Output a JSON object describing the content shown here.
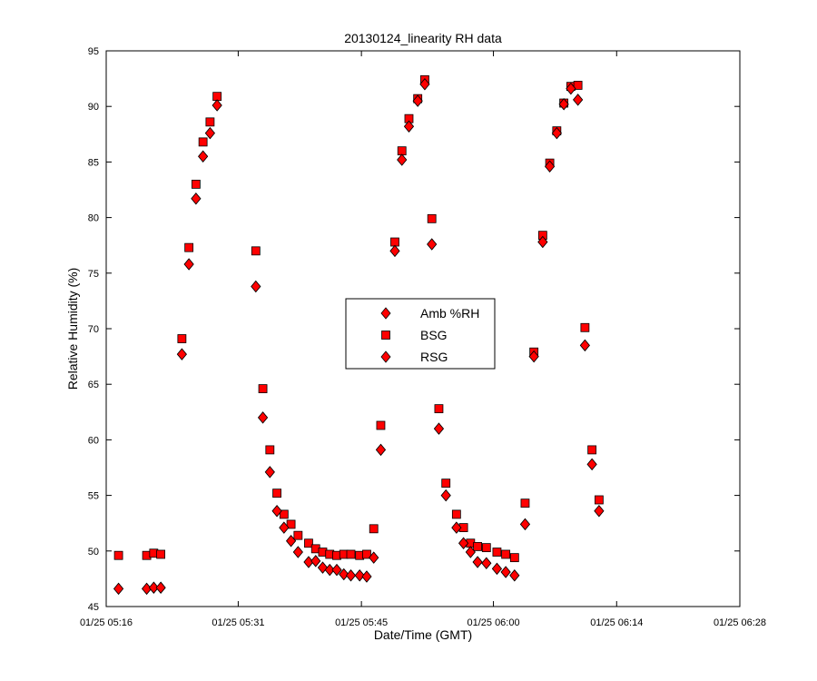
{
  "chart_data": {
    "type": "scatter",
    "title": "20130124_linearity RH data",
    "xlabel": "Date/Time (GMT)",
    "ylabel": "Relative Humidity (%)",
    "x_unit": "minute (HH:MM GMT, 01/25)",
    "xlim": [
      "05:16",
      "06:28"
    ],
    "ylim": [
      45,
      95
    ],
    "xticks": [
      {
        "x": "05:16",
        "label": "01/25 05:16"
      },
      {
        "x": "05:31",
        "label": "01/25 05:31"
      },
      {
        "x": "05:45",
        "label": "01/25 05:45"
      },
      {
        "x": "06:00",
        "label": "01/25 06:00"
      },
      {
        "x": "06:14",
        "label": "01/25 06:14"
      },
      {
        "x": "06:28",
        "label": "01/25 06:28"
      }
    ],
    "yticks": [
      45,
      50,
      55,
      60,
      65,
      70,
      75,
      80,
      85,
      90,
      95
    ],
    "grid": false,
    "legend_position": "center",
    "x": [
      "05:17:24",
      "05:20:36",
      "05:21:24",
      "05:22:12",
      "05:24:36",
      "05:25:24",
      "05:26:12",
      "05:27:00",
      "05:27:48",
      "05:28:36",
      "05:29:24",
      "05:33:00",
      "05:33:48",
      "05:34:36",
      "05:35:24",
      "05:36:12",
      "05:37:00",
      "05:37:48",
      "05:39:00",
      "05:39:48",
      "05:40:36",
      "05:41:24",
      "05:42:12",
      "05:43:00",
      "05:43:48",
      "05:44:48",
      "05:45:36",
      "05:46:24",
      "05:47:12",
      "05:48:00",
      "05:48:48",
      "05:49:36",
      "05:50:24",
      "05:51:24",
      "05:52:12",
      "05:53:00",
      "05:53:48",
      "05:54:36",
      "05:55:48",
      "05:56:36",
      "05:57:24",
      "05:58:12",
      "05:59:12",
      "06:00:24",
      "06:01:24",
      "06:02:24",
      "06:03:36",
      "06:04:36",
      "06:05:36",
      "06:06:24",
      "06:07:12",
      "06:08:00",
      "06:08:48",
      "06:09:36",
      "06:10:24",
      "06:11:12",
      "06:12:00",
      "06:12:48",
      "06:13:36",
      "06:14:24",
      "06:15:12",
      "06:16:00",
      "06:16:48",
      "06:17:36"
    ],
    "series": [
      {
        "name": "Amb %RH",
        "marker": "diamond",
        "color": "#ff0000",
        "values": [
          46.6,
          46.6,
          46.7,
          46.7,
          67.7,
          75.8,
          81.7,
          85.5,
          87.6,
          90.1,
          null,
          73.8,
          62.0,
          57.1,
          53.6,
          52.1,
          50.9,
          49.9,
          49.0,
          49.1,
          48.5,
          48.3,
          48.3,
          47.9,
          47.8,
          47.8,
          47.7,
          49.4,
          59.1,
          null,
          77.0,
          85.2,
          88.2,
          90.5,
          92.0,
          77.6,
          61.0,
          55.0,
          52.1,
          50.7,
          49.9,
          49.0,
          48.9,
          48.4,
          48.1,
          47.8,
          52.4,
          67.5,
          77.8,
          84.6,
          87.6,
          90.2,
          91.6,
          90.6,
          68.5,
          57.8,
          53.6,
          null,
          null,
          null,
          null,
          null,
          null,
          null
        ]
      },
      {
        "name": "BSG",
        "marker": "square",
        "color": "#ff0000",
        "values": [
          49.6,
          49.6,
          49.8,
          49.7,
          69.1,
          77.3,
          83.0,
          86.8,
          88.6,
          90.9,
          null,
          77.0,
          64.6,
          59.1,
          55.2,
          53.3,
          52.4,
          51.4,
          50.7,
          50.2,
          49.9,
          49.7,
          49.6,
          49.7,
          49.7,
          49.6,
          49.7,
          52.0,
          61.3,
          null,
          77.8,
          86.0,
          88.9,
          90.7,
          92.4,
          79.9,
          62.8,
          56.1,
          53.3,
          52.1,
          50.7,
          50.4,
          50.3,
          49.9,
          49.7,
          49.4,
          54.3,
          67.9,
          78.4,
          84.9,
          87.8,
          90.3,
          91.8,
          91.9,
          70.1,
          59.1,
          54.6,
          null,
          null,
          null,
          null,
          null,
          null,
          null
        ]
      },
      {
        "name": "RSG",
        "marker": "diamond",
        "color": "#ff0000",
        "values": [
          46.6,
          46.6,
          46.7,
          46.7,
          67.7,
          75.8,
          81.7,
          85.5,
          87.6,
          90.1,
          null,
          73.8,
          62.0,
          57.1,
          53.6,
          52.1,
          50.9,
          49.9,
          49.0,
          49.1,
          48.5,
          48.3,
          48.3,
          47.9,
          47.8,
          47.8,
          47.7,
          49.4,
          59.1,
          null,
          77.0,
          85.2,
          88.2,
          90.5,
          92.0,
          77.6,
          61.0,
          55.0,
          52.1,
          50.7,
          49.9,
          49.0,
          48.9,
          48.4,
          48.1,
          47.8,
          52.4,
          67.5,
          77.8,
          84.6,
          87.6,
          90.2,
          91.6,
          90.6,
          68.5,
          57.8,
          53.6,
          null,
          null,
          null,
          null,
          null,
          null,
          null
        ]
      }
    ],
    "legend": [
      "Amb %RH",
      "BSG",
      "RSG"
    ]
  }
}
